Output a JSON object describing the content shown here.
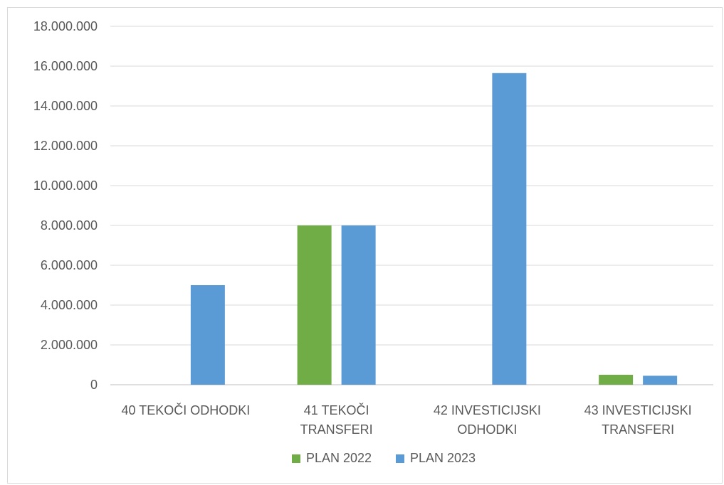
{
  "chart_data": {
    "type": "bar",
    "categories": [
      [
        "40 TEKOČI ODHODKI"
      ],
      [
        "41 TEKOČI",
        "TRANSFERI"
      ],
      [
        "42 INVESTICIJSKI",
        "ODHODKI"
      ],
      [
        "43 INVESTICIJSKI",
        "TRANSFERI"
      ]
    ],
    "series": [
      {
        "name": "PLAN 2022",
        "color": "#70ad47",
        "values": [
          0,
          8000000,
          0,
          500000
        ]
      },
      {
        "name": "PLAN 2023",
        "color": "#5b9bd5",
        "values": [
          5000000,
          8000000,
          15650000,
          450000
        ]
      }
    ],
    "yticks": [
      "0",
      "2.000.000",
      "4.000.000",
      "6.000.000",
      "8.000.000",
      "10.000.000",
      "12.000.000",
      "14.000.000",
      "16.000.000",
      "18.000.000"
    ],
    "ylim": [
      0,
      18000000
    ],
    "grid": true,
    "legend": "bottom"
  }
}
